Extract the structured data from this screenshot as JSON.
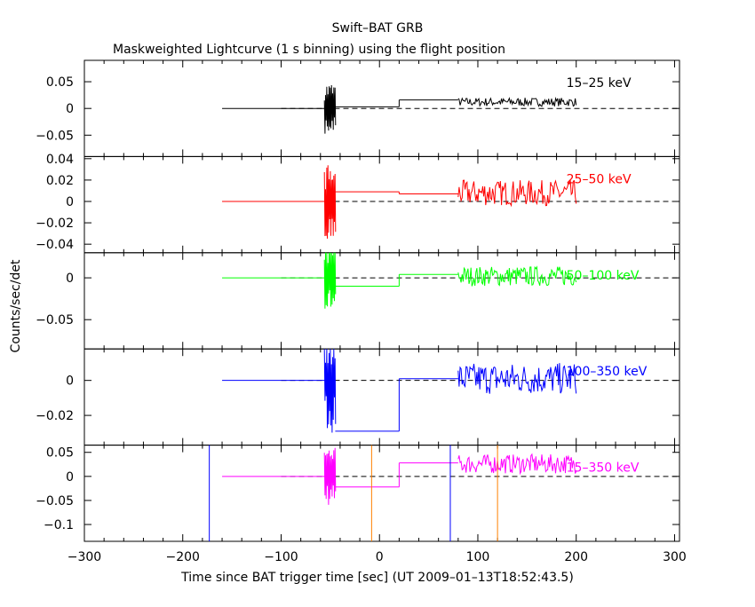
{
  "title": "Swift–BAT GRB",
  "subtitle": "Maskweighted Lightcurve (1 s binning) using the flight position",
  "xlabel": "Time since BAT trigger time [sec] (UT 2009–01–13T18:52:43.5)",
  "ylabel": "Counts/sec/det",
  "colors": {
    "black": "#000000",
    "red": "#ff0000",
    "green": "#00ff00",
    "blue": "#0000ff",
    "magenta": "#ff00ff",
    "orange": "#ff8000"
  },
  "chart_data": {
    "type": "line",
    "xlim": [
      -300,
      305
    ],
    "x_ticks": [
      -300,
      -200,
      -100,
      0,
      100,
      200,
      300
    ],
    "grid": false,
    "panels": [
      {
        "label": "15–25 keV",
        "color": "#000000",
        "ylim": [
          -0.09,
          0.09
        ],
        "ticks": [
          0.05,
          0,
          -0.05
        ],
        "tick_labels": [
          "0.05",
          "0",
          "−0.05"
        ],
        "segments": [
          {
            "x0": -160,
            "x1": -55,
            "y": 0
          },
          {
            "x0": -45,
            "x1": 20,
            "y": 0.003
          },
          {
            "x0": 20,
            "x1": 80,
            "y": 0.016
          }
        ],
        "burst": {
          "x0": -56,
          "x1": -44,
          "amp": 0.05
        },
        "noise": {
          "x0": 80,
          "x1": 200,
          "mean": 0.012,
          "amp": 0.008
        },
        "dashed_zero_from": -100
      },
      {
        "label": "25–50 keV",
        "color": "#ff0000",
        "ylim": [
          -0.048,
          0.042
        ],
        "ticks": [
          0.04,
          0.02,
          0,
          -0.02,
          -0.04
        ],
        "tick_labels": [
          "0.04",
          "0.02",
          "0",
          "−0.02",
          "−0.04"
        ],
        "segments": [
          {
            "x0": -160,
            "x1": -55,
            "y": 0
          },
          {
            "x0": -45,
            "x1": 20,
            "y": 0.009
          },
          {
            "x0": 20,
            "x1": 80,
            "y": 0.007
          }
        ],
        "burst": {
          "x0": -56,
          "x1": -44,
          "amp": 0.035
        },
        "noise": {
          "x0": 80,
          "x1": 200,
          "mean": 0.008,
          "amp": 0.012
        },
        "dashed_zero_from": -100
      },
      {
        "label": "50–100 keV",
        "color": "#00ff00",
        "ylim": [
          -0.085,
          0.03
        ],
        "ticks": [
          0,
          -0.05
        ],
        "tick_labels": [
          "0",
          "−0.05"
        ],
        "segments": [
          {
            "x0": -160,
            "x1": -55,
            "y": 0
          },
          {
            "x0": -45,
            "x1": 20,
            "y": -0.01
          },
          {
            "x0": 20,
            "x1": 80,
            "y": 0.004
          }
        ],
        "burst": {
          "x0": -56,
          "x1": -44,
          "amp": 0.04
        },
        "noise": {
          "x0": 80,
          "x1": 200,
          "mean": 0.002,
          "amp": 0.012
        },
        "dashed_zero_from": -100
      },
      {
        "label": "100–350 keV",
        "color": "#0000ff",
        "ylim": [
          -0.037,
          0.018
        ],
        "ticks": [
          0,
          -0.02
        ],
        "tick_labels": [
          "0",
          "−0.02"
        ],
        "segments": [
          {
            "x0": -160,
            "x1": -55,
            "y": 0
          },
          {
            "x0": -45,
            "x1": 20,
            "y": -0.029
          },
          {
            "x0": 20,
            "x1": 80,
            "y": 0.001
          }
        ],
        "burst": {
          "x0": -56,
          "x1": -44,
          "amp": 0.03
        },
        "noise": {
          "x0": 80,
          "x1": 200,
          "mean": 0.001,
          "amp": 0.009
        },
        "dashed_zero_from": -100
      },
      {
        "label": "15–350 keV",
        "color": "#ff00ff",
        "ylim": [
          -0.135,
          0.065
        ],
        "ticks": [
          0.05,
          0,
          -0.05,
          -0.1
        ],
        "tick_labels": [
          "0.05",
          "0",
          "−0.05",
          "−0.1"
        ],
        "segments": [
          {
            "x0": -160,
            "x1": -55,
            "y": 0
          },
          {
            "x0": -45,
            "x1": 20,
            "y": -0.022
          },
          {
            "x0": 20,
            "x1": 80,
            "y": 0.028
          }
        ],
        "burst": {
          "x0": -56,
          "x1": -44,
          "amp": 0.06
        },
        "noise": {
          "x0": 80,
          "x1": 200,
          "mean": 0.026,
          "amp": 0.02
        },
        "dashed_zero_from": -100,
        "vlines": [
          {
            "x": -173,
            "color": "#0000ff"
          },
          {
            "x": -8,
            "color": "#ff8000"
          },
          {
            "x": 72,
            "color": "#0000ff"
          },
          {
            "x": 120,
            "color": "#ff8000"
          }
        ]
      }
    ]
  }
}
